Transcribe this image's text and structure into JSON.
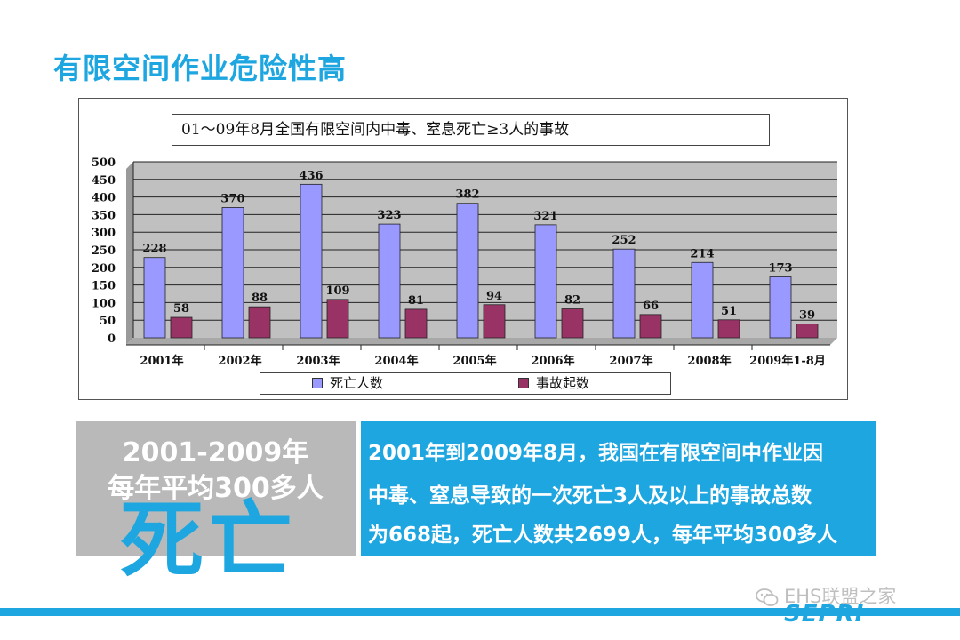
{
  "page": {
    "title": "有限空间作业危险性高"
  },
  "chart_data": {
    "type": "bar",
    "title": "01～09年8月全国有限空间内中毒、窒息死亡≥3人的事故",
    "categories": [
      "2001年",
      "2002年",
      "2003年",
      "2004年",
      "2005年",
      "2006年",
      "2007年",
      "2008年",
      "2009年1-8月"
    ],
    "series": [
      {
        "name": "死亡人数",
        "color": "#9999ff",
        "values": [
          228,
          370,
          436,
          323,
          382,
          321,
          252,
          214,
          173
        ]
      },
      {
        "name": "事故起数",
        "color": "#993366",
        "values": [
          58,
          88,
          109,
          81,
          94,
          82,
          66,
          51,
          39
        ]
      }
    ],
    "ylim": [
      0,
      500
    ],
    "yticks": [
      0,
      50,
      100,
      150,
      200,
      250,
      300,
      350,
      400,
      450,
      500
    ],
    "grid": true,
    "plot_background": "#c0c0c0",
    "legend": "bottom"
  },
  "summary": {
    "years_line": "2001-2009年",
    "avg_line": "每年平均300多人",
    "death_word": "死亡",
    "lines": [
      "2001年到2009年8月，我国在有限空间中作业因",
      "中毒、窒息导致的一次死亡3人及以上的事故总数",
      "为668起，死亡人数共2699人，每年平均300多人"
    ]
  },
  "footer": {
    "logo": "SEPRI",
    "watermark": "EHS联盟之家"
  },
  "colors": {
    "accent": "#1ea6e0",
    "gray_panel": "#b9b9b9"
  }
}
